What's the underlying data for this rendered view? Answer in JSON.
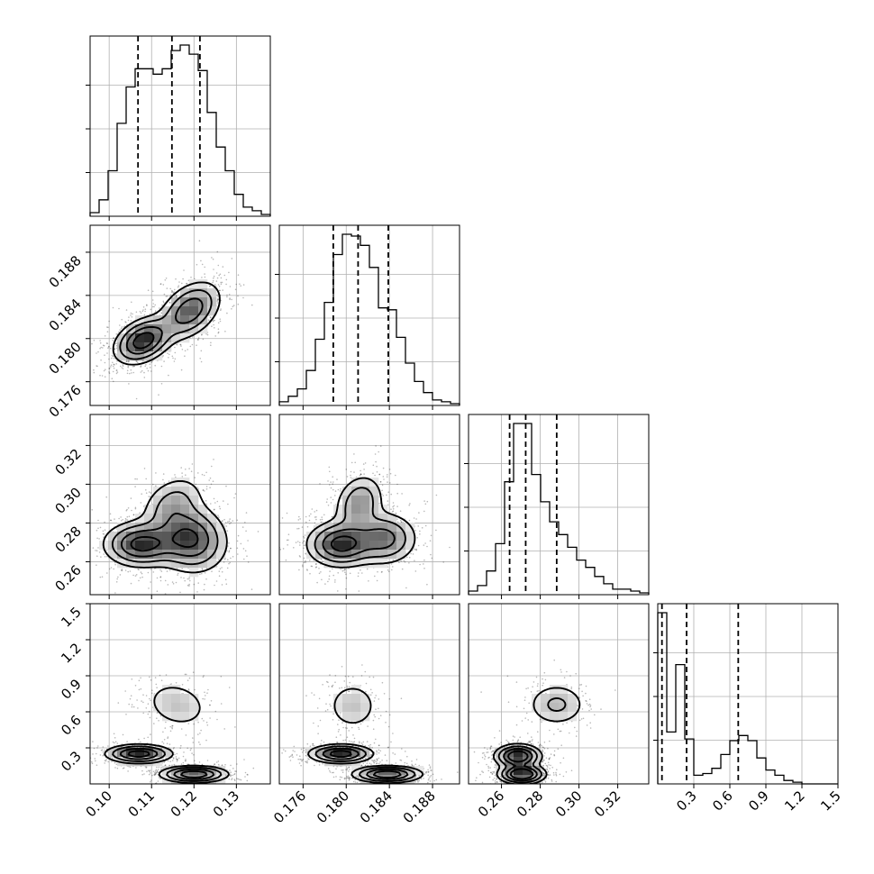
{
  "chart_data": {
    "type": "corner",
    "parameters": [
      {
        "ticks": [
          0.1,
          0.11,
          0.12,
          0.13
        ],
        "tick_labels": [
          "0.10",
          "0.11",
          "0.12",
          "0.13"
        ],
        "range": [
          0.0955,
          0.138
        ],
        "quantiles": [
          0.1068,
          0.1148,
          0.1214
        ],
        "hist": [
          0.02,
          0.09,
          0.25,
          0.51,
          0.71,
          0.81,
          0.81,
          0.78,
          0.81,
          0.91,
          0.94,
          0.89,
          0.8,
          0.57,
          0.38,
          0.25,
          0.12,
          0.05,
          0.03,
          0.01
        ]
      },
      {
        "ticks": [
          0.176,
          0.18,
          0.184,
          0.188
        ],
        "tick_labels": [
          "0.176",
          "0.180",
          "0.184",
          "0.188"
        ],
        "range": [
          0.1738,
          0.1905
        ],
        "quantiles": [
          0.1788,
          0.1811,
          0.1839
        ],
        "hist": [
          0.02,
          0.05,
          0.09,
          0.19,
          0.36,
          0.56,
          0.82,
          0.93,
          0.92,
          0.87,
          0.75,
          0.53,
          0.52,
          0.37,
          0.23,
          0.13,
          0.07,
          0.03,
          0.02,
          0.01
        ]
      },
      {
        "ticks": [
          0.26,
          0.28,
          0.3,
          0.32
        ],
        "tick_labels": [
          "0.26",
          "0.28",
          "0.30",
          "0.32"
        ],
        "range": [
          0.243,
          0.336
        ],
        "quantiles": [
          0.2642,
          0.2725,
          0.2885
        ],
        "hist": [
          0.02,
          0.05,
          0.13,
          0.28,
          0.62,
          0.94,
          0.94,
          0.66,
          0.51,
          0.4,
          0.33,
          0.26,
          0.19,
          0.15,
          0.1,
          0.06,
          0.03,
          0.03,
          0.02,
          0.01
        ]
      },
      {
        "ticks": [
          0.3,
          0.6,
          0.9,
          1.2,
          1.5
        ],
        "tick_labels": [
          "0.3",
          "0.6",
          "0.9",
          "1.2",
          "1.5"
        ],
        "range": [
          0.0,
          1.5
        ],
        "quantiles": [
          0.035,
          0.24,
          0.67
        ],
        "hist": [
          0.99,
          0.3,
          0.69,
          0.26,
          0.05,
          0.06,
          0.09,
          0.17,
          0.25,
          0.28,
          0.25,
          0.15,
          0.08,
          0.05,
          0.02,
          0.01,
          0.0,
          0.0,
          0.0,
          0.0
        ]
      }
    ],
    "modes": {
      "1_0": [
        {
          "mx": 0.108,
          "my": 0.1798,
          "sx": 0.0035,
          "sy": 0.0011,
          "r": 0.35,
          "w": 1.0
        },
        {
          "mx": 0.119,
          "my": 0.1826,
          "sx": 0.0038,
          "sy": 0.0014,
          "r": 0.4,
          "w": 0.75
        }
      ],
      "2_0": [
        {
          "mx": 0.1075,
          "my": 0.269,
          "sx": 0.0045,
          "sy": 0.006,
          "r": 0.0,
          "w": 1.0
        },
        {
          "mx": 0.119,
          "my": 0.272,
          "sx": 0.0045,
          "sy": 0.009,
          "r": -0.1,
          "w": 0.95
        },
        {
          "mx": 0.115,
          "my": 0.29,
          "sx": 0.004,
          "sy": 0.008,
          "r": 0.3,
          "w": 0.4
        }
      ],
      "2_1": [
        {
          "mx": 0.1795,
          "my": 0.269,
          "sx": 0.0016,
          "sy": 0.006,
          "r": 0.0,
          "w": 1.0
        },
        {
          "mx": 0.1835,
          "my": 0.272,
          "sx": 0.0016,
          "sy": 0.007,
          "r": 0.0,
          "w": 0.7
        },
        {
          "mx": 0.1812,
          "my": 0.29,
          "sx": 0.0012,
          "sy": 0.008,
          "r": 0.2,
          "w": 0.55
        }
      ],
      "3_0": [
        {
          "mx": 0.116,
          "my": 0.66,
          "sx": 0.0042,
          "sy": 0.11,
          "r": -0.2,
          "w": 0.3
        },
        {
          "mx": 0.107,
          "my": 0.25,
          "sx": 0.004,
          "sy": 0.04,
          "r": 0.0,
          "w": 1.0
        },
        {
          "mx": 0.12,
          "my": 0.08,
          "sx": 0.004,
          "sy": 0.035,
          "r": 0.0,
          "w": 1.1
        }
      ],
      "3_1": [
        {
          "mx": 0.1806,
          "my": 0.65,
          "sx": 0.0013,
          "sy": 0.11,
          "r": 0.0,
          "w": 0.3
        },
        {
          "mx": 0.1795,
          "my": 0.25,
          "sx": 0.0015,
          "sy": 0.04,
          "r": 0.0,
          "w": 1.0
        },
        {
          "mx": 0.1838,
          "my": 0.08,
          "sx": 0.0016,
          "sy": 0.035,
          "r": 0.0,
          "w": 1.1
        }
      ],
      "3_2": [
        {
          "mx": 0.2885,
          "my": 0.66,
          "sx": 0.0085,
          "sy": 0.1,
          "r": 0.0,
          "w": 0.3
        },
        {
          "mx": 0.2685,
          "my": 0.23,
          "sx": 0.006,
          "sy": 0.05,
          "r": 0.0,
          "w": 1.0
        },
        {
          "mx": 0.2705,
          "my": 0.08,
          "sx": 0.006,
          "sy": 0.04,
          "r": 0.0,
          "w": 1.1
        }
      ]
    },
    "grid": true,
    "title": "",
    "xlabel": "",
    "ylabel": ""
  }
}
